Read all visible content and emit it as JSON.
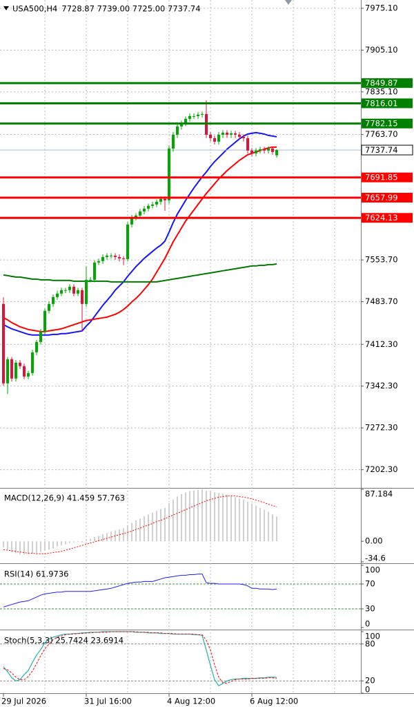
{
  "chart_data": [
    {
      "type": "candlestick",
      "title": "USA500,H4",
      "subtitle": "7728.87 7739.00 7725.00 7737.74",
      "categories": [
        "29 Jul 2026",
        null,
        null,
        null,
        null,
        null,
        null,
        null,
        null,
        null,
        null,
        null,
        null,
        null,
        null,
        null,
        null,
        null,
        null,
        null,
        "31 Jul 16:00",
        null,
        null,
        null,
        null,
        null,
        null,
        null,
        null,
        null,
        null,
        null,
        null,
        null,
        null,
        null,
        null,
        null,
        null,
        null,
        "4 Aug 12:00",
        null,
        null,
        null,
        null,
        null,
        null,
        null,
        null,
        null,
        null,
        null,
        null,
        null,
        null,
        null,
        null,
        null,
        null,
        null,
        "6 Aug 12:00",
        null,
        null,
        null,
        null,
        null,
        null
      ],
      "open": [
        7480,
        7346.9,
        7387.4,
        7355.0,
        7381.6,
        7375.8,
        7358.4,
        7364.2,
        7398.9,
        7416.3,
        7433.6,
        7468.4,
        7479.9,
        7491.5,
        7497.3,
        7503.1,
        7503.1,
        7508.8,
        7497.3,
        7503.1,
        7479.9,
        7520.4,
        7520.4,
        7549.3,
        7551.7,
        7558.6,
        7560.9,
        7560.9,
        7558.6,
        7556.3,
        7555.1,
        7613.0,
        7624.5,
        7628.0,
        7634.9,
        7639.6,
        7644.2,
        7646.5,
        7651.2,
        7655.8,
        7653.5,
        7740.2,
        7763.4,
        7777.3,
        7783.1,
        7790.0,
        7794.6,
        7794.6,
        7796.9,
        7798.1,
        7763.4,
        7757.6,
        7751.8,
        7763.4,
        7766.9,
        7763.4,
        7765.7,
        7763.4,
        7759.9,
        7757.6,
        7736.8,
        7732.1,
        7736.8,
        7739.1,
        7736.8,
        7740.2,
        7728.87
      ],
      "high": [
        7491,
        7391,
        7391,
        7386,
        7386,
        7380,
        7368,
        7403,
        7420,
        7438,
        7472,
        7484,
        7496,
        7502,
        7507,
        7507,
        7513,
        7513,
        7507,
        7507,
        7543,
        7525,
        7553,
        7556,
        7563,
        7565,
        7565,
        7565,
        7563,
        7560,
        7617,
        7629,
        7632,
        7639,
        7644,
        7648,
        7651,
        7655,
        7660,
        7660,
        7745,
        7768,
        7782,
        7787,
        7794,
        7799,
        7799,
        7801,
        7802,
        7821,
        7768,
        7762,
        7768,
        7771,
        7771,
        7770,
        7770,
        7768,
        7764,
        7762,
        7741,
        7741,
        7743,
        7743,
        7744,
        7744,
        7739
      ],
      "low": [
        7343,
        7329,
        7350,
        7350,
        7371,
        7354,
        7354,
        7360,
        7394,
        7412,
        7429,
        7464,
        7475,
        7487,
        7493,
        7498,
        7498,
        7493,
        7493,
        7434,
        7475,
        7516,
        7516,
        7545,
        7547,
        7554,
        7556,
        7554,
        7551,
        7545,
        7551,
        7608,
        7620,
        7623,
        7630,
        7635,
        7640,
        7642,
        7646,
        7636,
        7648,
        7735,
        7758,
        7772,
        7778,
        7785,
        7790,
        7790,
        7792,
        7758,
        7752,
        7747,
        7747,
        7758,
        7758,
        7758,
        7758,
        7755,
        7752,
        7732,
        7727,
        7727,
        7732,
        7732,
        7732,
        7730,
        7725
      ],
      "close": [
        7346.9,
        7387.4,
        7355.0,
        7381.6,
        7375.8,
        7358.4,
        7364.2,
        7398.9,
        7416.3,
        7433.6,
        7468.4,
        7479.9,
        7491.5,
        7497.3,
        7503.1,
        7503.1,
        7508.8,
        7497.3,
        7503.1,
        7479.9,
        7520.4,
        7520.4,
        7549.3,
        7551.7,
        7558.6,
        7560.9,
        7560.9,
        7558.6,
        7556.3,
        7555.1,
        7613.0,
        7624.5,
        7628.0,
        7634.9,
        7639.6,
        7644.2,
        7646.5,
        7651.2,
        7655.8,
        7653.5,
        7740.2,
        7763.4,
        7777.3,
        7783.1,
        7790.0,
        7794.6,
        7794.6,
        7796.9,
        7798.1,
        7763.4,
        7757.6,
        7751.8,
        7763.4,
        7766.9,
        7763.4,
        7765.7,
        7763.4,
        7759.9,
        7757.6,
        7736.8,
        7732.1,
        7736.8,
        7739.1,
        7736.8,
        7740.2,
        7734.5,
        7737.74
      ],
      "up_color": "#00a800",
      "down_color": "#dc143c",
      "series": [
        {
          "color": "#1414ff",
          "values": [
            7445.2,
            7441.7,
            7438.3,
            7436.0,
            7433.6,
            7431.3,
            7429.0,
            7427.9,
            7427.9,
            7427.9,
            7427.9,
            7427.9,
            7429.0,
            7429.0,
            7430.2,
            7430.2,
            7431.3,
            7432.5,
            7433.6,
            7434.8,
            7442.9,
            7449.8,
            7459.1,
            7468.3,
            7477.6,
            7485.7,
            7493.8,
            7503.1,
            7510.0,
            7516.9,
            7526.2,
            7534.3,
            7542.4,
            7549.3,
            7556.3,
            7562.1,
            7567.9,
            7573.6,
            7578.3,
            7585.2,
            7600.2,
            7616.4,
            7630.3,
            7641.9,
            7653.5,
            7663.9,
            7674.3,
            7683.6,
            7692.8,
            7700.9,
            7710.2,
            7718.3,
            7725.2,
            7732.1,
            7739.1,
            7744.9,
            7750.7,
            7756.4,
            7761.1,
            7764.5,
            7765.7,
            7766.9,
            7765.7,
            7764.5,
            7762.2,
            7761.1,
            7759.9
          ]
        },
        {
          "color": "#ff0000",
          "values": [
            7456.8,
            7453.3,
            7448.7,
            7445.2,
            7441.7,
            7439.4,
            7437.1,
            7436.0,
            7434.8,
            7433.6,
            7433.6,
            7434.8,
            7436.0,
            7437.1,
            7438.3,
            7440.6,
            7442.9,
            7445.2,
            7447.5,
            7449.8,
            7452.2,
            7453.3,
            7454.5,
            7455.6,
            7456.8,
            7457.9,
            7460.3,
            7462.6,
            7466.0,
            7470.7,
            7476.4,
            7483.4,
            7489.2,
            7496.1,
            7504.2,
            7512.3,
            7521.6,
            7533.1,
            7544.7,
            7556.3,
            7570.2,
            7584.0,
            7595.6,
            7607.2,
            7618.8,
            7628.0,
            7637.3,
            7646.5,
            7655.8,
            7665.0,
            7673.1,
            7681.2,
            7689.3,
            7696.3,
            7703.2,
            7709.0,
            7714.8,
            7720.6,
            7725.2,
            7729.8,
            7732.1,
            7734.5,
            7736.8,
            7739.1,
            7741.4,
            7742.6,
            7742.6
          ]
        },
        {
          "color": "#007800",
          "values": [
            7528.5,
            7527.4,
            7526.2,
            7525.0,
            7525.0,
            7523.9,
            7522.7,
            7521.6,
            7521.6,
            7520.4,
            7520.4,
            7520.4,
            7519.3,
            7519.3,
            7519.3,
            7519.3,
            7519.3,
            7518.1,
            7518.1,
            7518.1,
            7518.1,
            7518.1,
            7518.1,
            7518.1,
            7518.1,
            7518.1,
            7516.9,
            7516.9,
            7516.9,
            7516.9,
            7516.9,
            7516.9,
            7516.9,
            7516.9,
            7516.9,
            7516.9,
            7516.9,
            7516.9,
            7518.1,
            7519.3,
            7520.4,
            7521.6,
            7522.7,
            7523.9,
            7525.0,
            7526.2,
            7527.4,
            7528.5,
            7529.7,
            7530.8,
            7532.0,
            7533.1,
            7534.3,
            7535.5,
            7536.6,
            7537.8,
            7538.9,
            7540.1,
            7541.2,
            7542.4,
            7543.6,
            7543.6,
            7544.7,
            7544.7,
            7545.9,
            7545.9,
            7547.0
          ]
        }
      ],
      "levels": [
        {
          "value": 7849.87,
          "color": "#008000"
        },
        {
          "value": 7816.01,
          "color": "#008000"
        },
        {
          "value": 7782.15,
          "color": "#008000"
        },
        {
          "value": 7691.85,
          "color": "#ff0000"
        },
        {
          "value": 7657.99,
          "color": "#ff0000"
        },
        {
          "value": 7624.13,
          "color": "#ff0000"
        }
      ],
      "current_price": 7737.74,
      "current_price_color": "#a8bccf",
      "ylim": [
        7173,
        7989
      ],
      "yticks": [
        {
          "value": 7975.1,
          "label": "7975.10"
        },
        {
          "value": 7905.1,
          "label": "7905.10"
        },
        {
          "value": 7835.1,
          "label": "7835.10"
        },
        {
          "value": 7763.7,
          "label": "7763.70"
        },
        {
          "value": 7553.7,
          "label": "7553.70"
        },
        {
          "value": 7483.7,
          "label": "7483.70"
        },
        {
          "value": 7412.3,
          "label": "7412.30"
        },
        {
          "value": 7342.3,
          "label": "7342.30"
        },
        {
          "value": 7272.3,
          "label": "7272.30"
        },
        {
          "value": 7202.3,
          "label": "7202.30"
        }
      ],
      "grid": true
    },
    {
      "type": "macd",
      "title": "MACD(12,26,9) 41.459 57.763",
      "histogram": {
        "color": "#a0a0a0",
        "values": [
          -10,
          -14,
          -18,
          -20,
          -22,
          -22,
          -22,
          -21,
          -20,
          -18,
          -16,
          -14,
          -12,
          -9,
          -7,
          -5,
          -3,
          -2,
          -1,
          -2,
          2,
          4,
          7,
          9,
          12,
          14,
          16,
          18,
          20,
          22,
          27,
          31,
          35,
          38,
          42,
          45,
          48,
          51,
          54,
          56,
          64,
          70,
          75,
          79,
          82,
          84,
          85,
          86,
          87,
          85,
          83,
          82,
          81,
          80,
          78,
          76,
          74,
          72,
          70,
          66,
          63,
          60,
          56,
          53,
          49,
          45,
          41.459
        ]
      },
      "signal": {
        "color": "#ff0000",
        "values": [
          -14,
          -15,
          -16,
          -17,
          -18,
          -19,
          -20,
          -20,
          -21,
          -21,
          -21,
          -20,
          -19,
          -18,
          -17,
          -15,
          -13,
          -11,
          -9,
          -7,
          -5,
          -3,
          -1,
          1,
          3,
          5,
          7,
          9,
          11,
          13,
          15,
          17,
          20,
          22,
          25,
          27,
          30,
          33,
          35,
          38,
          41,
          44,
          47,
          50,
          53,
          56,
          59,
          62,
          65,
          68,
          70,
          72,
          74,
          75,
          76,
          76,
          76,
          75,
          74,
          73,
          71,
          69,
          67,
          65,
          62,
          60,
          57.763
        ]
      },
      "ylim": [
        -34.6,
        87.184
      ],
      "yticks": [
        87.184,
        {
          "value": 0,
          "label": "0.00"
        },
        -34.6
      ]
    },
    {
      "type": "rsi",
      "title": "RSI(14) 61.9736",
      "color": "#1e1eff",
      "values": [
        33,
        35,
        37,
        39,
        41,
        42,
        43,
        46,
        49,
        52,
        54,
        55,
        56,
        57,
        57,
        58,
        58,
        58,
        58,
        58,
        58,
        58,
        59,
        60,
        61,
        62,
        63,
        65,
        67,
        69,
        71,
        72,
        73,
        73,
        74,
        74,
        74,
        76,
        78,
        80,
        81,
        82,
        83,
        84,
        84,
        85,
        85,
        86,
        86,
        72,
        71,
        71,
        70,
        70,
        70,
        70,
        70,
        70,
        69,
        67,
        63,
        63,
        62,
        62,
        62,
        61,
        61.9736
      ],
      "levels": [
        70,
        30
      ],
      "level_color": "#3c8c3c",
      "ylim": [
        0,
        100
      ],
      "yticks": [
        100,
        70,
        30,
        0
      ]
    },
    {
      "type": "stoch",
      "title": "Stoch(5,3,3) 25.7424 23.6914",
      "main": {
        "color": "#20b2aa",
        "values": [
          43,
          35,
          25,
          20,
          22,
          30,
          37,
          50,
          62,
          71,
          82,
          88,
          91,
          93,
          95,
          96,
          96,
          97,
          97,
          98,
          98,
          99,
          99,
          99,
          100,
          100,
          100,
          100,
          100,
          100,
          100,
          100,
          99,
          99,
          99,
          98,
          98,
          98,
          97,
          97,
          97,
          96,
          96,
          96,
          96,
          96,
          95,
          95,
          94,
          70,
          45,
          22,
          12,
          16,
          20,
          22,
          23,
          23,
          24,
          24,
          24,
          24,
          25,
          25,
          26,
          26,
          25.7424
        ]
      },
      "signal": {
        "color": "#ff0000",
        "values": [
          40,
          38,
          33,
          26,
          22,
          22,
          27,
          36,
          48,
          61,
          72,
          80,
          87,
          91,
          93,
          95,
          96,
          96,
          97,
          97,
          98,
          98,
          99,
          99,
          99,
          99,
          100,
          100,
          100,
          100,
          100,
          100,
          100,
          99,
          99,
          99,
          98,
          98,
          98,
          97,
          97,
          97,
          96,
          96,
          96,
          96,
          96,
          95,
          95,
          86,
          70,
          46,
          26,
          17,
          16,
          19,
          22,
          23,
          23,
          23,
          24,
          24,
          24,
          24,
          25,
          25,
          23.6914
        ]
      },
      "levels": [
        80,
        20
      ],
      "level_color": "#8a8a8a",
      "ylim": [
        0,
        100
      ],
      "yticks": [
        100,
        80,
        20,
        0
      ]
    }
  ]
}
